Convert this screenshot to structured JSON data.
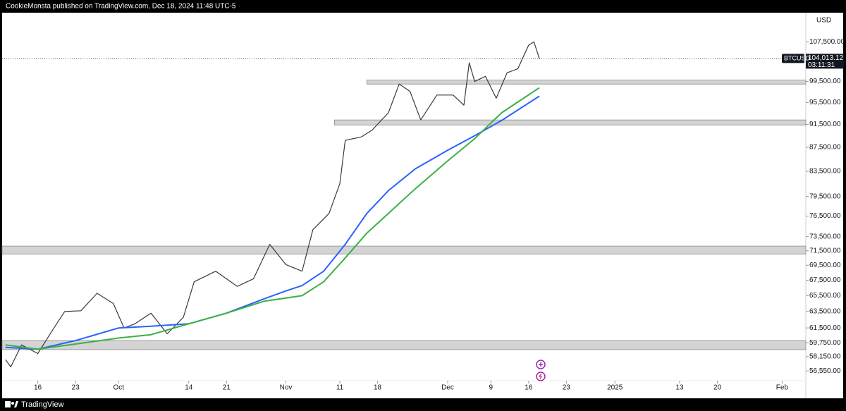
{
  "header": {
    "text": "CookieMonsta published on TradingView.com, Dec 18, 2024 11:48 UTC-5"
  },
  "footer": {
    "brand": "TradingView"
  },
  "chart_data": {
    "type": "line",
    "currency": "USD",
    "log_scale": true,
    "xlim": [
      "2024-09-09",
      "2025-02-05"
    ],
    "ylim": [
      55480,
      113800
    ],
    "xticks": [
      {
        "value": "2024-09-16",
        "label": "16"
      },
      {
        "value": "2024-09-23",
        "label": "23"
      },
      {
        "value": "2024-10-01",
        "label": "Oct"
      },
      {
        "value": "2024-10-14",
        "label": "14"
      },
      {
        "value": "2024-10-21",
        "label": "21"
      },
      {
        "value": "2024-11-01",
        "label": "Nov"
      },
      {
        "value": "2024-11-11",
        "label": "11"
      },
      {
        "value": "2024-11-18",
        "label": "18"
      },
      {
        "value": "2024-12-01",
        "label": "Dec"
      },
      {
        "value": "2024-12-09",
        "label": "9"
      },
      {
        "value": "2024-12-16",
        "label": "16"
      },
      {
        "value": "2024-12-23",
        "label": "23"
      },
      {
        "value": "2025-01-01",
        "label": "2025"
      },
      {
        "value": "2025-01-13",
        "label": "13"
      },
      {
        "value": "2025-01-20",
        "label": "20"
      },
      {
        "value": "2025-02-01",
        "label": "Feb"
      }
    ],
    "yticks": [
      {
        "value": 107500,
        "label": "107,500.00"
      },
      {
        "value": 99500,
        "label": "99,500.00"
      },
      {
        "value": 95500,
        "label": "95,500.00"
      },
      {
        "value": 91500,
        "label": "91,500.00"
      },
      {
        "value": 87500,
        "label": "87,500.00"
      },
      {
        "value": 83500,
        "label": "83,500.00"
      },
      {
        "value": 79500,
        "label": "79,500.00"
      },
      {
        "value": 76500,
        "label": "76,500.00"
      },
      {
        "value": 73500,
        "label": "73,500.00"
      },
      {
        "value": 71500,
        "label": "71,500.00"
      },
      {
        "value": 69500,
        "label": "69,500.00"
      },
      {
        "value": 67500,
        "label": "67,500.00"
      },
      {
        "value": 65500,
        "label": "65,500.00"
      },
      {
        "value": 63500,
        "label": "63,500.00"
      },
      {
        "value": 61500,
        "label": "61,500.00"
      },
      {
        "value": 59750,
        "label": "59,750.00"
      },
      {
        "value": 58150,
        "label": "58,150.00"
      },
      {
        "value": 56550,
        "label": "56,550.00"
      }
    ],
    "series": [
      {
        "color": "#3a3a3a",
        "width": 1.2,
        "x": [
          "2024-09-10",
          "2024-09-11",
          "2024-09-13",
          "2024-09-16",
          "2024-09-19",
          "2024-09-21",
          "2024-09-24",
          "2024-09-27",
          "2024-09-30",
          "2024-10-02",
          "2024-10-04",
          "2024-10-07",
          "2024-10-10",
          "2024-10-13",
          "2024-10-15",
          "2024-10-19",
          "2024-10-23",
          "2024-10-26",
          "2024-10-29",
          "2024-11-01",
          "2024-11-04",
          "2024-11-06",
          "2024-11-09",
          "2024-11-11",
          "2024-11-12",
          "2024-11-15",
          "2024-11-17",
          "2024-11-20",
          "2024-11-22",
          "2024-11-24",
          "2024-11-26",
          "2024-11-29",
          "2024-12-02",
          "2024-12-04",
          "2024-12-05",
          "2024-12-06",
          "2024-12-08",
          "2024-12-10",
          "2024-12-12",
          "2024-12-14",
          "2024-12-16",
          "2024-12-17",
          "2024-12-18"
        ],
        "values": [
          57800,
          57000,
          59500,
          58500,
          61500,
          63500,
          63600,
          65800,
          64500,
          61500,
          62000,
          63300,
          60800,
          62800,
          67300,
          68700,
          66700,
          67700,
          72400,
          69600,
          68700,
          74500,
          76900,
          81500,
          88700,
          89300,
          90500,
          93600,
          99000,
          97600,
          92300,
          96900,
          96900,
          95000,
          103200,
          99500,
          100500,
          96300,
          101200,
          102000,
          106800,
          107500,
          104013.12
        ]
      },
      {
        "color": "#2962ff",
        "width": 2,
        "x": [
          "2024-09-10",
          "2024-09-16",
          "2024-09-23",
          "2024-10-01",
          "2024-10-07",
          "2024-10-14",
          "2024-10-21",
          "2024-10-28",
          "2024-11-01",
          "2024-11-04",
          "2024-11-08",
          "2024-11-12",
          "2024-11-16",
          "2024-11-20",
          "2024-11-25",
          "2024-12-01",
          "2024-12-06",
          "2024-12-11",
          "2024-12-18"
        ],
        "values": [
          59200,
          59000,
          60000,
          61500,
          61700,
          62000,
          63300,
          65100,
          66100,
          66800,
          68700,
          72400,
          76900,
          80400,
          83900,
          87000,
          89500,
          92200,
          96700
        ]
      },
      {
        "color": "#3cb043",
        "width": 2,
        "x": [
          "2024-09-10",
          "2024-09-16",
          "2024-09-23",
          "2024-10-01",
          "2024-10-07",
          "2024-10-14",
          "2024-10-21",
          "2024-10-28",
          "2024-11-04",
          "2024-11-08",
          "2024-11-12",
          "2024-11-16",
          "2024-11-20",
          "2024-11-25",
          "2024-12-01",
          "2024-12-06",
          "2024-12-11",
          "2024-12-18"
        ],
        "values": [
          59500,
          59000,
          59600,
          60300,
          60700,
          62000,
          63300,
          64800,
          65500,
          67300,
          70500,
          74000,
          76900,
          80700,
          85200,
          89000,
          93600,
          98300
        ]
      }
    ],
    "zones": [
      {
        "start": "2024-11-16",
        "low": 99000,
        "high": 99770
      },
      {
        "start": "2024-11-10",
        "low": 91400,
        "high": 92300
      },
      {
        "start": "2024-09-09",
        "low": 71050,
        "high": 72150
      },
      {
        "start": "2024-09-09",
        "low": 58950,
        "high": 60000
      }
    ],
    "last": {
      "value": 104013.12,
      "label": "104,013.12",
      "symbol": "BTCUSD",
      "countdown": "03:11:31"
    }
  }
}
